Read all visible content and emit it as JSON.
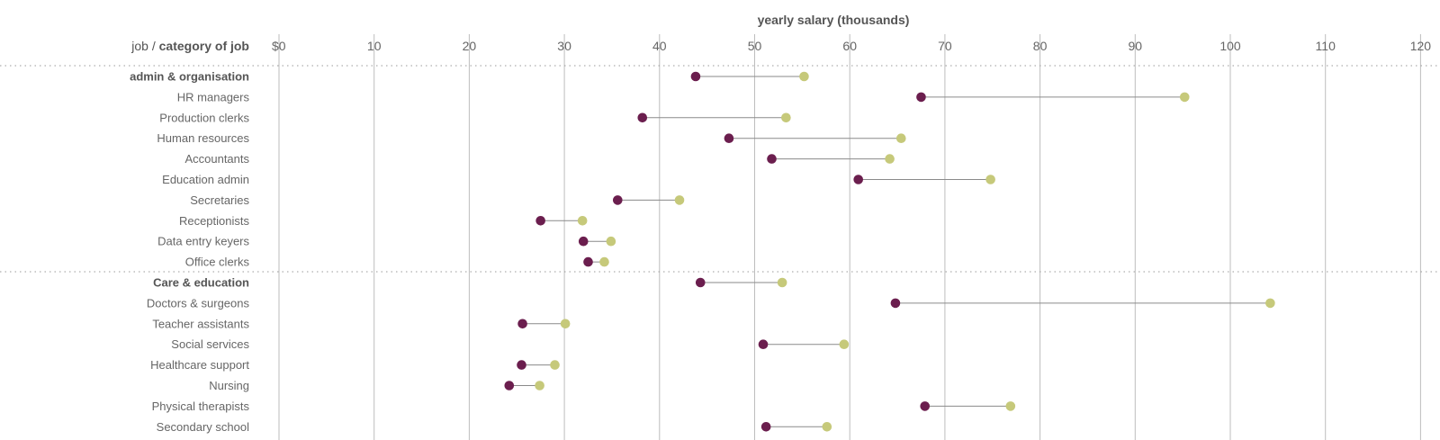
{
  "colors": {
    "low_dot": "#6b1e4e",
    "high_dot": "#c6c97a",
    "grid": "#bdbdbd",
    "text": "#555555"
  },
  "chart_data": {
    "type": "dumbbell",
    "title": "yearly salary (thousands)",
    "ylabel_prefix": "job / ",
    "ylabel_bold": "category of job",
    "x_ticks": [
      "$0",
      "10",
      "20",
      "30",
      "40",
      "50",
      "60",
      "70",
      "80",
      "90",
      "100",
      "110",
      "120"
    ],
    "xlim": [
      0,
      120
    ],
    "grid": true,
    "series": [
      {
        "name": "",
        "role": "low",
        "color": "#6b1e4e"
      },
      {
        "name": "",
        "role": "high",
        "color": "#c6c97a"
      }
    ],
    "rows": [
      {
        "label": "admin & organisation",
        "group": true,
        "low": 43.8,
        "high": 55.2
      },
      {
        "label": "HR managers",
        "group": false,
        "low": 67.5,
        "high": 95.2
      },
      {
        "label": "Production clerks",
        "group": false,
        "low": 38.2,
        "high": 53.3
      },
      {
        "label": "Human resources",
        "group": false,
        "low": 47.3,
        "high": 65.4
      },
      {
        "label": "Accountants",
        "group": false,
        "low": 51.8,
        "high": 64.2
      },
      {
        "label": "Education admin",
        "group": false,
        "low": 60.9,
        "high": 74.8
      },
      {
        "label": "Secretaries",
        "group": false,
        "low": 35.6,
        "high": 42.1
      },
      {
        "label": "Receptionists",
        "group": false,
        "low": 27.5,
        "high": 31.9
      },
      {
        "label": "Data entry keyers",
        "group": false,
        "low": 32.0,
        "high": 34.9
      },
      {
        "label": "Office clerks",
        "group": false,
        "low": 32.5,
        "high": 34.2
      },
      {
        "label": "Care & education",
        "group": true,
        "low": 44.3,
        "high": 52.9
      },
      {
        "label": "Doctors & surgeons",
        "group": false,
        "low": 64.8,
        "high": 104.2
      },
      {
        "label": "Teacher assistants",
        "group": false,
        "low": 25.6,
        "high": 30.1
      },
      {
        "label": "Social services",
        "group": false,
        "low": 50.9,
        "high": 59.4
      },
      {
        "label": "Healthcare support",
        "group": false,
        "low": 25.5,
        "high": 29.0
      },
      {
        "label": "Nursing",
        "group": false,
        "low": 24.2,
        "high": 27.4
      },
      {
        "label": "Physical therapists",
        "group": false,
        "low": 67.9,
        "high": 76.9
      },
      {
        "label": "Secondary school",
        "group": false,
        "low": 51.2,
        "high": 57.6
      }
    ]
  }
}
